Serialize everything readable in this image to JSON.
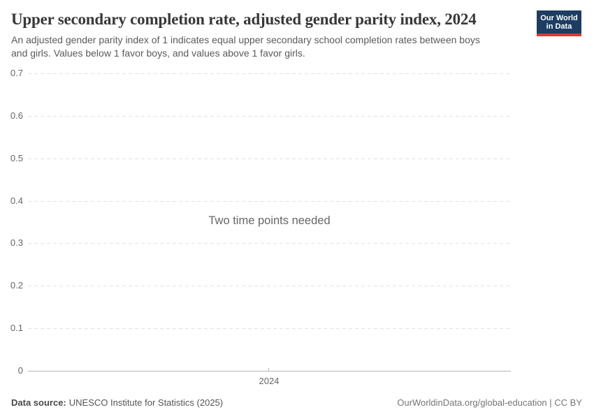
{
  "header": {
    "title": "Upper secondary completion rate, adjusted gender parity index, 2024",
    "subtitle": "An adjusted gender parity index of 1 indicates equal upper secondary school completion rates between boys and girls. Values below 1 favor boys, and values above 1 favor girls.",
    "logo": {
      "line1": "Our World",
      "line2": "in Data",
      "bg": "#1d3d63",
      "accent": "#d93a34"
    }
  },
  "chart_data": {
    "type": "line",
    "title": "Upper secondary completion rate, adjusted gender parity index, 2024",
    "series": [],
    "x_tick_labels": [
      "2024"
    ],
    "y_ticks": [
      "0",
      "0.1",
      "0.2",
      "0.3",
      "0.4",
      "0.5",
      "0.6",
      "0.7"
    ],
    "ylim": [
      0,
      0.7
    ],
    "xlabel": "",
    "ylabel": "",
    "grid": "horizontal-dashed",
    "legend": "none",
    "empty_message": "Two time points needed"
  },
  "footer": {
    "datasource_label": "Data source:",
    "datasource_value": "UNESCO Institute for Statistics (2025)",
    "link": "OurWorldinData.org/global-education | CC BY"
  },
  "colors": {
    "title_text": "#383838",
    "muted_text": "#666666",
    "gridline": "#e2e2e2",
    "axis": "#b6b6b6",
    "logo_bg": "#1d3d63",
    "logo_accent": "#d93a34"
  }
}
